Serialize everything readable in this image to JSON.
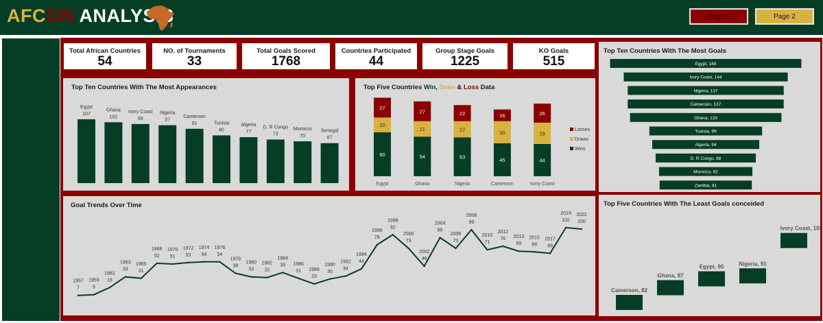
{
  "header": {
    "title_part1": "AFC",
    "title_part2": "ON",
    "title_part3": " ANALYSIS",
    "buttons": [
      {
        "label": "Page 1"
      },
      {
        "label": "Page 2"
      }
    ]
  },
  "kpis": [
    {
      "label": "Total African Countries",
      "value": "54"
    },
    {
      "label": "NO. of Tournaments",
      "value": "33"
    },
    {
      "label": "Total Goals Scored",
      "value": "1768"
    },
    {
      "label": "Countries Participated",
      "value": "44"
    },
    {
      "label": "Group Stage Goals",
      "value": "1225"
    },
    {
      "label": "KO Goals",
      "value": "515"
    }
  ],
  "colors": {
    "green": "#063d25",
    "red": "#8b0000",
    "gold": "#d7b33e",
    "panel": "#d9d9d9"
  },
  "chart_data": [
    {
      "type": "bar",
      "title": "Top Ten Countries With The Most Appearances",
      "categories": [
        "Egypt",
        "Ghana",
        "Ivory Coast",
        "Nigeria",
        "Cameroon",
        "Tunisia",
        "Algeria",
        "D. R Congo",
        "Morocco",
        "Senegal"
      ],
      "values": [
        107,
        102,
        99,
        97,
        91,
        80,
        77,
        73,
        70,
        67
      ]
    },
    {
      "type": "bar",
      "stacked": true,
      "title": "Top Five Countries Win, Draw & Loss Data",
      "title_parts": [
        "Top Five Countries ",
        "Win",
        ", ",
        "Draw",
        " & ",
        "Loss",
        " Data"
      ],
      "categories": [
        "Egypt",
        "Ghana",
        "Nigeria",
        "Cameroon",
        "Ivory Coast"
      ],
      "series": [
        {
          "name": "Wins",
          "values": [
            60,
            54,
            53,
            45,
            44
          ]
        },
        {
          "name": "Draws",
          "values": [
            20,
            21,
            22,
            30,
            29
          ]
        },
        {
          "name": "Losses",
          "values": [
            27,
            27,
            22,
            16,
            26
          ]
        }
      ],
      "legend": "right"
    },
    {
      "type": "bar",
      "orientation": "horizontal",
      "style": "funnel",
      "title": "Top Ten Countries With The Most Goals",
      "categories": [
        "Egypt",
        "Ivory Coast",
        "Nigeria",
        "Cameroon",
        "Ghana",
        "Tunisia",
        "Algeria",
        "D. R Congo",
        "Morocco",
        "Zambia"
      ],
      "values": [
        168,
        144,
        137,
        137,
        133,
        99,
        94,
        88,
        82,
        81
      ]
    },
    {
      "type": "line",
      "title": "Goal Trends Over Time",
      "x": [
        "1957",
        "1959",
        "1962",
        "1963",
        "1965",
        "1968",
        "1970",
        "1972",
        "1974",
        "1976",
        "1978",
        "1980",
        "1982",
        "1984",
        "1986",
        "1988",
        "1990",
        "1992",
        "1994",
        "1996",
        "1998",
        "2000",
        "2002",
        "2004",
        "2006",
        "2008",
        "2010",
        "2012",
        "2013",
        "2015",
        "2017",
        "2019",
        "2022"
      ],
      "y": [
        7,
        8,
        18,
        33,
        31,
        52,
        51,
        53,
        54,
        54,
        38,
        33,
        32,
        39,
        31,
        23,
        30,
        34,
        44,
        78,
        92,
        73,
        48,
        88,
        73,
        99,
        71,
        76,
        69,
        68,
        66,
        102,
        100
      ]
    },
    {
      "type": "bar",
      "style": "step",
      "title": "Top Five Countries With The Least Goals conceided",
      "categories": [
        "Cameroon",
        "Ghana",
        "Egypt",
        "Nigeria",
        "Ivory Coast"
      ],
      "values": [
        82,
        87,
        90,
        91,
        103
      ]
    }
  ]
}
